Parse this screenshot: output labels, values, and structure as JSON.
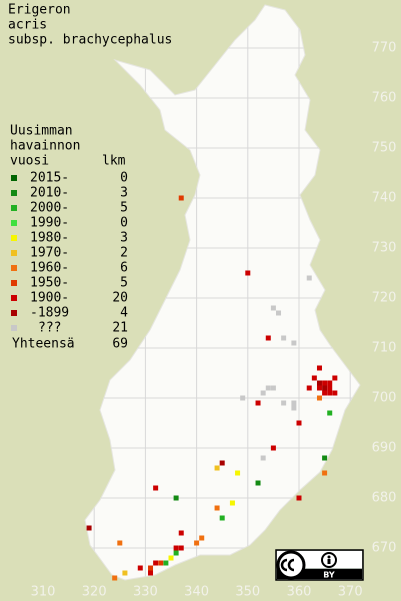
{
  "title_lines": [
    "Erigeron",
    "acris",
    "subsp. brachycephalus"
  ],
  "legend": {
    "title_lines": [
      "Uusimman",
      "havainnon",
      "vuosi"
    ],
    "count_header": "lkm",
    "items": [
      {
        "label": "2015-",
        "count": 0,
        "color": "#006400"
      },
      {
        "label": "2010-",
        "count": 3,
        "color": "#138a13"
      },
      {
        "label": "2000-",
        "count": 5,
        "color": "#22b022"
      },
      {
        "label": "1990-",
        "count": 0,
        "color": "#3fe03f"
      },
      {
        "label": "1980-",
        "count": 3,
        "color": "#f6f600"
      },
      {
        "label": "1970-",
        "count": 2,
        "color": "#f0c020"
      },
      {
        "label": "1960-",
        "count": 6,
        "color": "#f07010"
      },
      {
        "label": "1950-",
        "count": 5,
        "color": "#e03a00"
      },
      {
        "label": "1900-",
        "count": 20,
        "color": "#cc0000"
      },
      {
        "label": "-1899",
        "count": 4,
        "color": "#a80000"
      },
      {
        "label": "???",
        "count": 21,
        "color": "#c8c8c8"
      }
    ],
    "total_label": "Yhteensä",
    "total": 69
  },
  "grid": {
    "xticks": [
      310,
      320,
      330,
      340,
      350,
      360,
      370
    ],
    "yticks": [
      670,
      680,
      690,
      700,
      710,
      720,
      730,
      740,
      750,
      760,
      770
    ]
  },
  "points": [
    {
      "x": 337,
      "y": 740,
      "period": "1950-"
    },
    {
      "x": 350,
      "y": 725,
      "period": "1900-"
    },
    {
      "x": 362,
      "y": 724,
      "period": "???"
    },
    {
      "x": 355,
      "y": 718,
      "period": "???"
    },
    {
      "x": 356,
      "y": 717,
      "period": "???"
    },
    {
      "x": 354,
      "y": 712,
      "period": "1900-"
    },
    {
      "x": 357,
      "y": 712,
      "period": "???"
    },
    {
      "x": 359,
      "y": 711,
      "period": "???"
    },
    {
      "x": 364,
      "y": 706,
      "period": "1900-"
    },
    {
      "x": 363,
      "y": 704,
      "period": "1900-"
    },
    {
      "x": 367,
      "y": 704,
      "period": "1900-"
    },
    {
      "x": 364,
      "y": 703,
      "period": "-1899"
    },
    {
      "x": 365,
      "y": 703,
      "period": "1900-"
    },
    {
      "x": 366,
      "y": 703,
      "period": "1900-"
    },
    {
      "x": 362,
      "y": 702,
      "period": "1900-"
    },
    {
      "x": 364,
      "y": 702,
      "period": "1900-"
    },
    {
      "x": 365,
      "y": 702,
      "period": "-1899"
    },
    {
      "x": 366,
      "y": 702,
      "period": "1900-"
    },
    {
      "x": 365,
      "y": 701,
      "period": "1900-"
    },
    {
      "x": 366,
      "y": 701,
      "period": "1900-"
    },
    {
      "x": 367,
      "y": 701,
      "period": "1900-"
    },
    {
      "x": 364,
      "y": 700,
      "period": "1960-"
    },
    {
      "x": 366,
      "y": 697,
      "period": "2000-"
    },
    {
      "x": 354,
      "y": 702,
      "period": "???"
    },
    {
      "x": 355,
      "y": 702,
      "period": "???"
    },
    {
      "x": 353,
      "y": 701,
      "period": "???"
    },
    {
      "x": 352,
      "y": 699,
      "period": "1900-"
    },
    {
      "x": 349,
      "y": 700,
      "period": "???"
    },
    {
      "x": 357,
      "y": 699,
      "period": "???"
    },
    {
      "x": 359,
      "y": 698,
      "period": "???"
    },
    {
      "x": 359,
      "y": 699,
      "period": "???"
    },
    {
      "x": 360,
      "y": 695,
      "period": "1900-"
    },
    {
      "x": 355,
      "y": 690,
      "period": "1900-"
    },
    {
      "x": 353,
      "y": 688,
      "period": "???"
    },
    {
      "x": 365,
      "y": 688,
      "period": "2010-"
    },
    {
      "x": 365,
      "y": 685,
      "period": "1960-"
    },
    {
      "x": 345,
      "y": 687,
      "period": "-1899"
    },
    {
      "x": 344,
      "y": 686,
      "period": "1970-"
    },
    {
      "x": 348,
      "y": 685,
      "period": "1980-"
    },
    {
      "x": 352,
      "y": 683,
      "period": "2010-"
    },
    {
      "x": 360,
      "y": 680,
      "period": "1900-"
    },
    {
      "x": 332,
      "y": 682,
      "period": "1900-"
    },
    {
      "x": 336,
      "y": 680,
      "period": "2010-"
    },
    {
      "x": 347,
      "y": 679,
      "period": "1980-"
    },
    {
      "x": 344,
      "y": 678,
      "period": "1960-"
    },
    {
      "x": 345,
      "y": 676,
      "period": "2000-"
    },
    {
      "x": 319,
      "y": 674,
      "period": "-1899"
    },
    {
      "x": 337,
      "y": 673,
      "period": "1900-"
    },
    {
      "x": 341,
      "y": 672,
      "period": "1960-"
    },
    {
      "x": 340,
      "y": 671,
      "period": "1960-"
    },
    {
      "x": 325,
      "y": 671,
      "period": "1960-"
    },
    {
      "x": 336,
      "y": 670,
      "period": "1900-"
    },
    {
      "x": 337,
      "y": 670,
      "period": "1900-"
    },
    {
      "x": 336,
      "y": 669,
      "period": "2000-"
    },
    {
      "x": 335,
      "y": 668,
      "period": "1980-"
    },
    {
      "x": 334,
      "y": 667,
      "period": "2000-"
    },
    {
      "x": 332,
      "y": 667,
      "period": "1900-"
    },
    {
      "x": 333,
      "y": 667,
      "period": "1950-"
    },
    {
      "x": 329,
      "y": 666,
      "period": "1900-"
    },
    {
      "x": 331,
      "y": 666,
      "period": "1950-"
    },
    {
      "x": 331,
      "y": 665,
      "period": "1900-"
    },
    {
      "x": 326,
      "y": 665,
      "period": "1970-"
    },
    {
      "x": 324,
      "y": 664,
      "period": "1960-"
    }
  ],
  "license": "BY"
}
